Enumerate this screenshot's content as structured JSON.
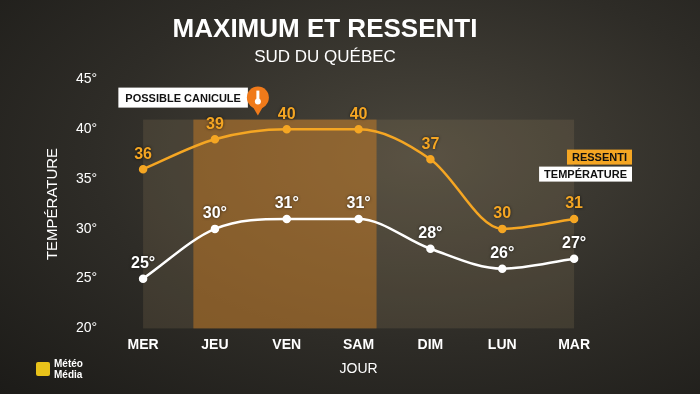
{
  "chart_data": {
    "type": "line",
    "title": "MAXIMUM ET RESSENTI",
    "subtitle": "SUD DU QUÉBEC",
    "x_label": "JOUR",
    "y_label": "TEMPÉRATURE",
    "source": "Météo Média",
    "categories": [
      "MER",
      "JEU",
      "VEN",
      "SAM",
      "DIM",
      "LUN",
      "MAR"
    ],
    "series": [
      {
        "name": "RESSENTI",
        "color": "#f5a623",
        "marker": "circle",
        "line_style": "solid",
        "values": [
          36,
          39,
          40,
          40,
          37,
          30,
          31
        ]
      },
      {
        "name": "TEMPÉRATURE",
        "color": "#ffffff",
        "marker": "circle",
        "line_style": "solid",
        "values": [
          25,
          30,
          31,
          31,
          28,
          26,
          27
        ],
        "value_labels": [
          "25°",
          "30°",
          "31°",
          "31°",
          "28°",
          "26°",
          "27°"
        ]
      }
    ],
    "ylim": [
      20,
      45
    ],
    "yticks": [
      {
        "value": 20,
        "label": "20°"
      },
      {
        "value": 25,
        "label": "25°"
      },
      {
        "value": 30,
        "label": "30°"
      },
      {
        "value": 35,
        "label": "35°"
      },
      {
        "value": 40,
        "label": "40°"
      },
      {
        "value": 45,
        "label": "45°"
      }
    ],
    "grid": false,
    "legend": "right",
    "data_labels": true,
    "annotations": [
      {
        "text": "POSSIBLE CANICULE",
        "from": "JEU",
        "to": "SAM"
      }
    ]
  }
}
